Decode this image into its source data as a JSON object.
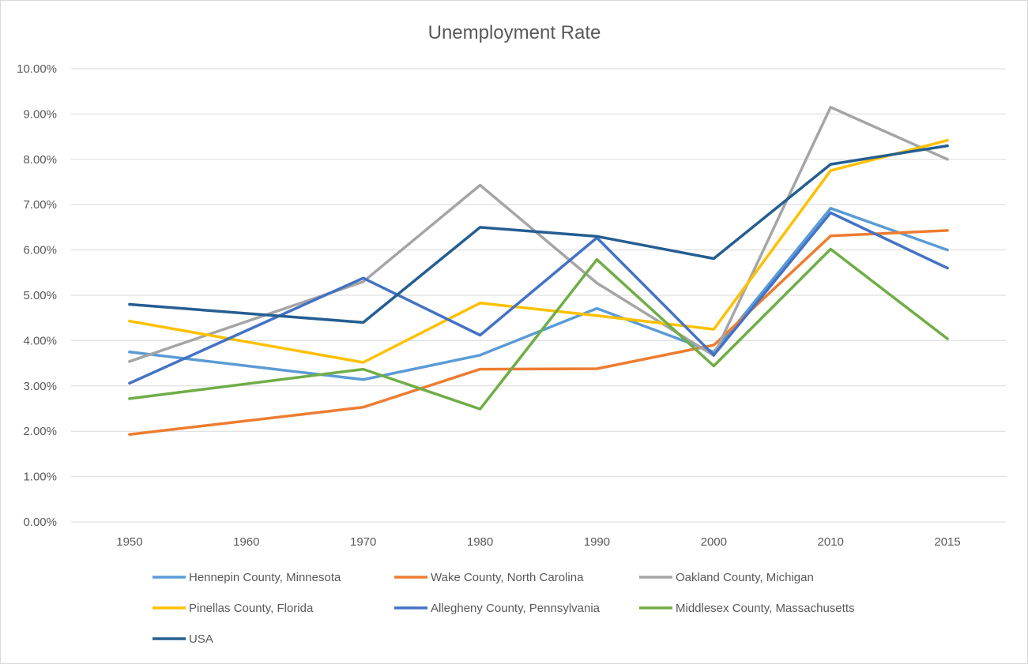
{
  "chart_data": {
    "type": "line",
    "title": "Unemployment Rate",
    "xlabel": "",
    "ylabel": "",
    "x": [
      "1950",
      "1960",
      "1970",
      "1980",
      "1990",
      "2000",
      "2010",
      "2015"
    ],
    "y_ticks": [
      "0.00%",
      "1.00%",
      "2.00%",
      "3.00%",
      "4.00%",
      "5.00%",
      "6.00%",
      "7.00%",
      "8.00%",
      "9.00%",
      "10.00%"
    ],
    "ylim": [
      0,
      10
    ],
    "y_unit": "%",
    "grid": true,
    "legend_position": "bottom",
    "series": [
      {
        "name": "Hennepin County, Minnesota",
        "color": "#5B9BD5",
        "values": [
          3.75,
          null,
          3.14,
          3.68,
          4.71,
          3.75,
          6.92,
          6.0
        ]
      },
      {
        "name": "Wake County, North Carolina",
        "color": "#ED7D31",
        "values": [
          1.93,
          null,
          2.53,
          3.37,
          3.38,
          3.9,
          6.31,
          6.43
        ]
      },
      {
        "name": "Oakland County, Michigan",
        "color": "#A5A5A5",
        "values": [
          3.54,
          null,
          5.3,
          7.43,
          5.27,
          3.67,
          9.15,
          8.0
        ]
      },
      {
        "name": "Pinellas County, Florida",
        "color": "#FFC000",
        "values": [
          4.43,
          null,
          3.52,
          4.83,
          4.55,
          4.25,
          7.75,
          8.42
        ]
      },
      {
        "name": "Allegheny County, Pennsylvania",
        "color": "#4472C4",
        "values": [
          3.06,
          null,
          5.38,
          4.12,
          6.27,
          3.68,
          6.82,
          5.6
        ]
      },
      {
        "name": "Middlesex County, Massachusetts",
        "color": "#70AD47",
        "values": [
          2.72,
          null,
          3.37,
          2.49,
          5.79,
          3.44,
          6.02,
          4.04
        ]
      },
      {
        "name": "USA",
        "color": "#255E91",
        "values": [
          4.8,
          null,
          4.4,
          6.5,
          6.3,
          5.81,
          7.89,
          8.3
        ]
      }
    ]
  }
}
